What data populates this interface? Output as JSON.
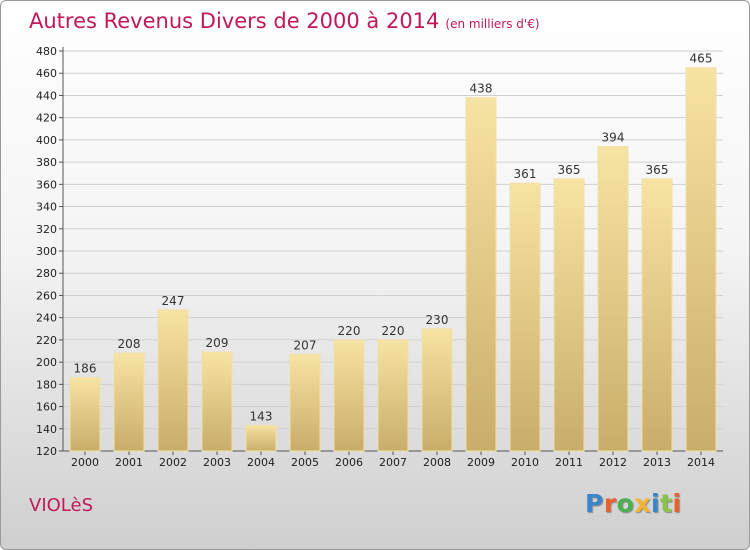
{
  "header": {
    "title": "Autres Revenus Divers de 2000 à 2014",
    "subtitle": "(en milliers d'€)"
  },
  "footer": {
    "place": "VIOLèS",
    "brand": "Proxiti"
  },
  "colors": {
    "accent": "#c2185b",
    "bar_top": "#f7e3a3",
    "bar_bottom": "#c9ad6a",
    "logo": [
      "#3a86c8",
      "#e8602c",
      "#4caf50",
      "#f2b632",
      "#3a86c8",
      "#8bc34a",
      "#e8602c"
    ]
  },
  "chart_data": {
    "type": "bar",
    "title": "Autres Revenus Divers de 2000 à 2014",
    "subtitle": "(en milliers d'€)",
    "categories": [
      "2000",
      "2001",
      "2002",
      "2003",
      "2004",
      "2005",
      "2006",
      "2007",
      "2008",
      "2009",
      "2010",
      "2011",
      "2012",
      "2013",
      "2014"
    ],
    "values": [
      186,
      208,
      247,
      209,
      143,
      207,
      220,
      220,
      230,
      438,
      361,
      365,
      394,
      365,
      465
    ],
    "ylim": [
      120,
      480
    ],
    "yticks": [
      120,
      140,
      160,
      180,
      200,
      220,
      240,
      260,
      280,
      300,
      320,
      340,
      360,
      380,
      400,
      420,
      440,
      460,
      480
    ],
    "grid": true,
    "legend": "none"
  }
}
